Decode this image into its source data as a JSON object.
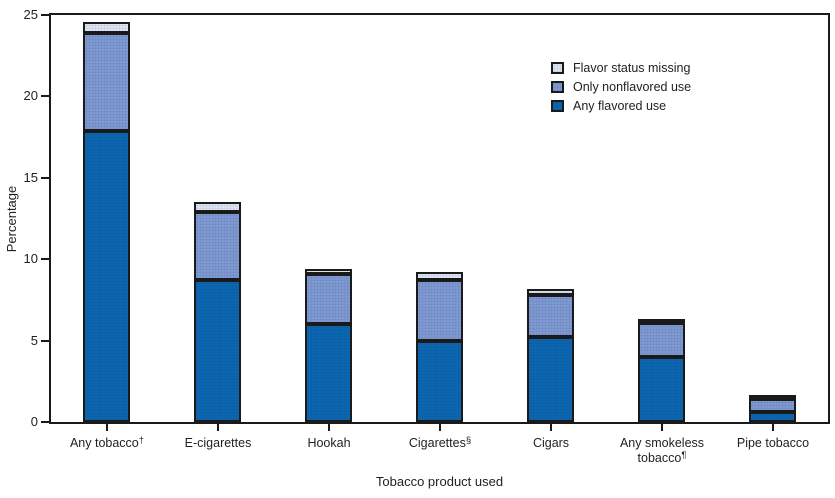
{
  "style": {
    "background": "#ffffff",
    "axis_color": "#1a1a1a",
    "text_color": "#1f1f1f"
  },
  "chart_data": {
    "type": "bar",
    "stacked": true,
    "title": "",
    "xlabel": "Tobacco product used",
    "ylabel": "Percentage",
    "ylim": [
      0,
      25
    ],
    "yticks": [
      "0",
      "5",
      "10",
      "15",
      "20",
      "25"
    ],
    "grid": false,
    "categories": [
      {
        "label": "Any tobacco†",
        "lines": [
          {
            "text": "Any tobacco",
            "sup": "†"
          }
        ]
      },
      {
        "label": "E-cigarettes",
        "lines": [
          {
            "text": "E-cigarettes",
            "sup": ""
          }
        ]
      },
      {
        "label": "Hookah",
        "lines": [
          {
            "text": "Hookah",
            "sup": ""
          }
        ]
      },
      {
        "label": "Cigarettes§",
        "lines": [
          {
            "text": "Cigarettes",
            "sup": "§"
          }
        ]
      },
      {
        "label": "Cigars",
        "lines": [
          {
            "text": "Cigars",
            "sup": ""
          }
        ]
      },
      {
        "label": "Any smokeless tobacco¶",
        "lines": [
          {
            "text": "Any smokeless",
            "sup": ""
          },
          {
            "text": "tobacco",
            "sup": "¶"
          }
        ]
      },
      {
        "label": "Pipe tobacco",
        "lines": [
          {
            "text": "Pipe tobacco",
            "sup": ""
          }
        ]
      }
    ],
    "series": [
      {
        "name": "Any flavored use",
        "color": "#0c67b2",
        "values": [
          17.9,
          8.7,
          6.0,
          5.0,
          5.2,
          4.0,
          0.6
        ]
      },
      {
        "name": "Only nonflavored use",
        "color": "#7e9ad4",
        "values": [
          6.0,
          4.2,
          3.1,
          3.7,
          2.6,
          2.1,
          0.8
        ]
      },
      {
        "name": "Flavor status missing",
        "color": "#dde4f4",
        "values": [
          0.7,
          0.6,
          0.3,
          0.5,
          0.4,
          0.2,
          0.2
        ]
      }
    ],
    "totals": [
      24.6,
      13.5,
      9.4,
      9.2,
      8.2,
      6.3,
      1.6
    ],
    "legend": {
      "position": "upper-right-inside",
      "entries": [
        {
          "label": "Flavor status missing",
          "color": "#dde4f4"
        },
        {
          "label": "Only nonflavored use",
          "color": "#7e9ad4"
        },
        {
          "label": "Any flavored use",
          "color": "#0c67b2"
        }
      ]
    }
  }
}
